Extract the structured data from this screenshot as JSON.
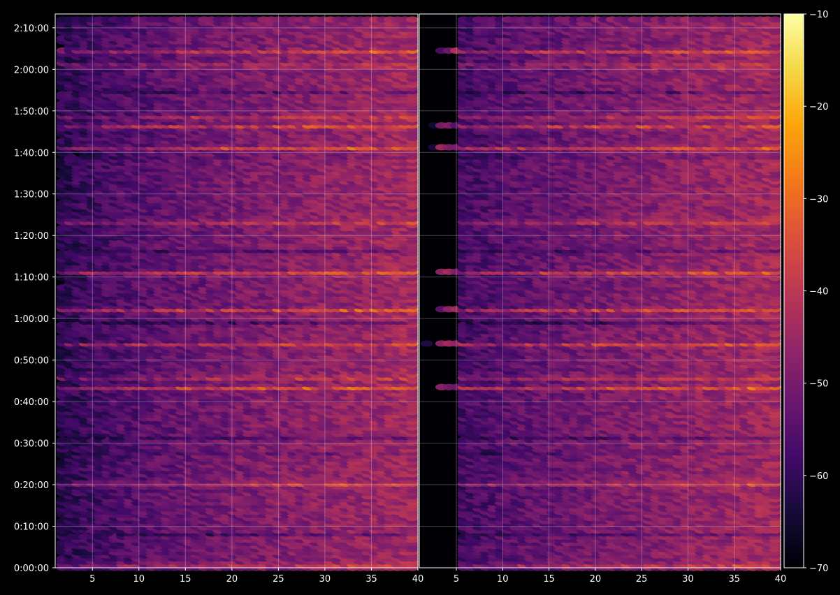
{
  "chart_data": {
    "type": "heatmap",
    "title": "",
    "xlabel": "",
    "ylabel": "",
    "panels": [
      {
        "name": "",
        "xlim": [
          1,
          40
        ],
        "x_ticks": [
          5,
          10,
          15,
          20,
          25,
          30,
          35,
          40
        ]
      },
      {
        "name": "",
        "xlim": [
          1,
          40
        ],
        "x_ticks": [
          5,
          10,
          15,
          20,
          25,
          30,
          35,
          40
        ]
      }
    ],
    "y_ticks": [
      {
        "seconds": 0,
        "label": "0:00:00"
      },
      {
        "seconds": 600,
        "label": "0:10:00"
      },
      {
        "seconds": 1200,
        "label": "0:20:00"
      },
      {
        "seconds": 1800,
        "label": "0:30:00"
      },
      {
        "seconds": 2400,
        "label": "0:40:00"
      },
      {
        "seconds": 3000,
        "label": "0:50:00"
      },
      {
        "seconds": 3600,
        "label": "1:00:00"
      },
      {
        "seconds": 4200,
        "label": "1:10:00"
      },
      {
        "seconds": 4800,
        "label": "1:20:00"
      },
      {
        "seconds": 5400,
        "label": "1:30:00"
      },
      {
        "seconds": 6000,
        "label": "1:40:00"
      },
      {
        "seconds": 6600,
        "label": "1:50:00"
      },
      {
        "seconds": 7200,
        "label": "2:00:00"
      },
      {
        "seconds": 7800,
        "label": "2:10:00"
      }
    ],
    "ylim": [
      0,
      8000
    ],
    "grid": true,
    "colormap": "inferno",
    "colorbar": {
      "range": [
        -70,
        -10
      ],
      "ticks": [
        -70,
        -60,
        -50,
        -40,
        -30,
        -20,
        -10
      ],
      "tick_labels": [
        "−70",
        "−60",
        "−50",
        "−40",
        "−30",
        "−20",
        "−10"
      ]
    },
    "strong_bands_seconds": [
      60,
      1230,
      2610,
      2760,
      3230,
      3730,
      4270,
      5010,
      6070,
      6380,
      6510,
      7270,
      7460
    ],
    "dim_bands_seconds": [
      490,
      1680,
      1880,
      3550,
      4580,
      5960,
      6890
    ]
  }
}
